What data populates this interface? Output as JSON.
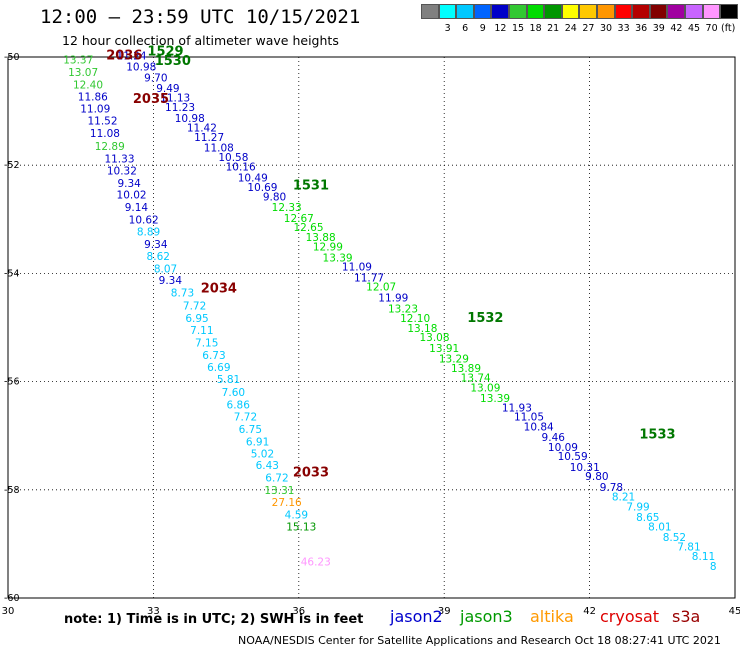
{
  "title": "12:00 – 23:59 UTC 10/15/2021",
  "subtitle": "12 hour collection of altimeter wave heights",
  "scale": {
    "unit": "(ft)",
    "boxes": [
      {
        "color": "#808080",
        "label": ""
      },
      {
        "color": "#00ffff",
        "label": "3"
      },
      {
        "color": "#00c8ff",
        "label": "6"
      },
      {
        "color": "#0064ff",
        "label": "9"
      },
      {
        "color": "#0000c8",
        "label": "12"
      },
      {
        "color": "#32c832",
        "label": "15"
      },
      {
        "color": "#00dc00",
        "label": "18"
      },
      {
        "color": "#009600",
        "label": "21"
      },
      {
        "color": "#ffff00",
        "label": "24"
      },
      {
        "color": "#ffc800",
        "label": "27"
      },
      {
        "color": "#ff9600",
        "label": "30"
      },
      {
        "color": "#ff0000",
        "label": "33"
      },
      {
        "color": "#b40000",
        "label": "36"
      },
      {
        "color": "#820000",
        "label": "39"
      },
      {
        "color": "#a000a0",
        "label": "42"
      },
      {
        "color": "#c864ff",
        "label": "45"
      },
      {
        "color": "#ff96ff",
        "label": "70"
      },
      {
        "color": "#000000",
        "label": ""
      }
    ]
  },
  "note": "note:  1) Time is in UTC;  2) SWH is in feet",
  "satellites": [
    {
      "name": "jason2",
      "color": "#0000cc"
    },
    {
      "name": "jason3",
      "color": "#009900"
    },
    {
      "name": "altika",
      "color": "#ff9900"
    },
    {
      "name": "cryosat",
      "color": "#dd0000"
    },
    {
      "name": "s3a",
      "color": "#990000"
    }
  ],
  "footer": "NOAA/NESDIS Center for Satellite Applications and Research    Oct 18 08:27:41 UTC 2021",
  "chart_data": {
    "type": "scatter",
    "xlim": [
      30,
      45
    ],
    "ylim": [
      -60,
      -50
    ],
    "xticks": [
      "30",
      "33",
      "36",
      "39",
      "42",
      "45"
    ],
    "yticks": [
      "-50",
      "-52",
      "-54",
      "-56",
      "-58",
      "-60"
    ],
    "grid": true,
    "colors": {
      "c3": "#00ffff",
      "c6": "#00c8ff",
      "c9": "#0064ff",
      "c12": "#0000c8",
      "c15": "#32c832",
      "c18": "#00dc00",
      "c21": "#009600",
      "c27": "#ffc800",
      "c30": "#ff9600",
      "c45": "#ff96ff",
      "jason3": "#007700",
      "s3a": "#880000"
    },
    "time_labels": [
      {
        "text": "2036",
        "lon": 32.4,
        "lat": -50.05,
        "color": "s3a"
      },
      {
        "text": "2035",
        "lon": 32.95,
        "lat": -50.85,
        "color": "s3a"
      },
      {
        "text": "2034",
        "lon": 34.35,
        "lat": -54.35,
        "color": "s3a"
      },
      {
        "text": "2033",
        "lon": 36.25,
        "lat": -57.75,
        "color": "s3a"
      },
      {
        "text": "1529",
        "lon": 33.25,
        "lat": -49.97,
        "color": "jason3"
      },
      {
        "text": "1530",
        "lon": 33.4,
        "lat": -50.15,
        "color": "jason3"
      },
      {
        "text": "1531",
        "lon": 36.25,
        "lat": -52.45,
        "color": "jason3"
      },
      {
        "text": "1532",
        "lon": 39.85,
        "lat": -54.9,
        "color": "jason3"
      },
      {
        "text": "1533",
        "lon": 43.4,
        "lat": -57.05,
        "color": "jason3"
      }
    ],
    "series": [
      {
        "satellite": "s3a",
        "points": [
          {
            "lon": 31.45,
            "lat": -50.12,
            "swh": 13.37,
            "c": "c15"
          },
          {
            "lon": 31.55,
            "lat": -50.35,
            "swh": 13.07,
            "c": "c15"
          },
          {
            "lon": 31.65,
            "lat": -50.58,
            "swh": 12.4,
            "c": "c15"
          },
          {
            "lon": 31.75,
            "lat": -50.8,
            "swh": 11.86,
            "c": "c12"
          },
          {
            "lon": 31.8,
            "lat": -51.03,
            "swh": 11.09,
            "c": "c12"
          },
          {
            "lon": 31.95,
            "lat": -51.25,
            "swh": 11.52,
            "c": "c12"
          },
          {
            "lon": 32.0,
            "lat": -51.48,
            "swh": 11.08,
            "c": "c12"
          },
          {
            "lon": 32.1,
            "lat": -51.72,
            "swh": 12.89,
            "c": "c15"
          },
          {
            "lon": 32.3,
            "lat": -51.95,
            "swh": 11.33,
            "c": "c12"
          },
          {
            "lon": 32.35,
            "lat": -52.17,
            "swh": 10.32,
            "c": "c12"
          },
          {
            "lon": 32.5,
            "lat": -52.4,
            "swh": 9.34,
            "c": "c12"
          },
          {
            "lon": 32.55,
            "lat": -52.62,
            "swh": 10.02,
            "c": "c12"
          },
          {
            "lon": 32.65,
            "lat": -52.85,
            "swh": 9.14,
            "c": "c12"
          },
          {
            "lon": 32.8,
            "lat": -53.08,
            "swh": 10.62,
            "c": "c12"
          },
          {
            "lon": 32.9,
            "lat": -53.3,
            "swh": 8.89,
            "c": "c6"
          },
          {
            "lon": 33.05,
            "lat": -53.53,
            "swh": 9.34,
            "c": "c12"
          },
          {
            "lon": 33.1,
            "lat": -53.75,
            "swh": 8.62,
            "c": "c6"
          },
          {
            "lon": 33.25,
            "lat": -53.98,
            "swh": 8.07,
            "c": "c6"
          },
          {
            "lon": 33.35,
            "lat": -54.2,
            "swh": 9.34,
            "c": "c12"
          },
          {
            "lon": 33.6,
            "lat": -54.43,
            "swh": 8.73,
            "c": "c6"
          },
          {
            "lon": 33.85,
            "lat": -54.67,
            "swh": 7.72,
            "c": "c6"
          },
          {
            "lon": 33.9,
            "lat": -54.9,
            "swh": 6.95,
            "c": "c6"
          },
          {
            "lon": 34.0,
            "lat": -55.12,
            "swh": 7.11,
            "c": "c6"
          },
          {
            "lon": 34.1,
            "lat": -55.35,
            "swh": 7.15,
            "c": "c6"
          },
          {
            "lon": 34.25,
            "lat": -55.58,
            "swh": 6.73,
            "c": "c6"
          },
          {
            "lon": 34.35,
            "lat": -55.8,
            "swh": 6.69,
            "c": "c6"
          },
          {
            "lon": 34.55,
            "lat": -56.03,
            "swh": 5.81,
            "c": "c6"
          },
          {
            "lon": 34.65,
            "lat": -56.27,
            "swh": 7.6,
            "c": "c6"
          },
          {
            "lon": 34.75,
            "lat": -56.5,
            "swh": 6.86,
            "c": "c6"
          },
          {
            "lon": 34.9,
            "lat": -56.72,
            "swh": 7.72,
            "c": "c6"
          },
          {
            "lon": 35.0,
            "lat": -56.95,
            "swh": 6.75,
            "c": "c6"
          },
          {
            "lon": 35.15,
            "lat": -57.18,
            "swh": 6.91,
            "c": "c6"
          },
          {
            "lon": 35.25,
            "lat": -57.4,
            "swh": 5.02,
            "c": "c6"
          },
          {
            "lon": 35.35,
            "lat": -57.62,
            "swh": 6.43,
            "c": "c6"
          },
          {
            "lon": 35.55,
            "lat": -57.85,
            "swh": 6.72,
            "c": "c6"
          },
          {
            "lon": 35.6,
            "lat": -58.08,
            "swh": 13.31,
            "c": "c15"
          },
          {
            "lon": 35.75,
            "lat": -58.3,
            "swh": 27.16,
            "c": "c30"
          },
          {
            "lon": 35.95,
            "lat": -58.53,
            "swh": 4.59,
            "c": "c6"
          },
          {
            "lon": 36.05,
            "lat": -58.75,
            "swh": 15.13,
            "c": "c21"
          },
          {
            "lon": 36.35,
            "lat": -59.4,
            "swh": 46.23,
            "c": "c45"
          }
        ]
      },
      {
        "satellite": "jason3",
        "points": [
          {
            "lon": 32.55,
            "lat": -50.05,
            "swh": 11.24,
            "c": "c12"
          },
          {
            "lon": 32.75,
            "lat": -50.25,
            "swh": 10.98,
            "c": "c12"
          },
          {
            "lon": 33.05,
            "lat": -50.45,
            "swh": 9.7,
            "c": "c12"
          },
          {
            "lon": 33.3,
            "lat": -50.65,
            "swh": 9.49,
            "c": "c12"
          },
          {
            "lon": 33.45,
            "lat": -50.82,
            "swh": 11.13,
            "c": "c12"
          },
          {
            "lon": 33.55,
            "lat": -51.0,
            "swh": 11.23,
            "c": "c12"
          },
          {
            "lon": 33.75,
            "lat": -51.2,
            "swh": 10.98,
            "c": "c12"
          },
          {
            "lon": 34.0,
            "lat": -51.38,
            "swh": 11.42,
            "c": "c12"
          },
          {
            "lon": 34.15,
            "lat": -51.55,
            "swh": 11.27,
            "c": "c12"
          },
          {
            "lon": 34.35,
            "lat": -51.75,
            "swh": 11.08,
            "c": "c12"
          },
          {
            "lon": 34.65,
            "lat": -51.92,
            "swh": 10.58,
            "c": "c12"
          },
          {
            "lon": 34.8,
            "lat": -52.1,
            "swh": 10.16,
            "c": "c12"
          },
          {
            "lon": 35.05,
            "lat": -52.3,
            "swh": 10.49,
            "c": "c12"
          },
          {
            "lon": 35.25,
            "lat": -52.48,
            "swh": 10.69,
            "c": "c12"
          },
          {
            "lon": 35.5,
            "lat": -52.65,
            "swh": 9.8,
            "c": "c12"
          },
          {
            "lon": 35.75,
            "lat": -52.85,
            "swh": 12.33,
            "c": "c18"
          },
          {
            "lon": 36.0,
            "lat": -53.05,
            "swh": 12.67,
            "c": "c18"
          },
          {
            "lon": 36.2,
            "lat": -53.22,
            "swh": 12.65,
            "c": "c18"
          },
          {
            "lon": 36.45,
            "lat": -53.4,
            "swh": 13.88,
            "c": "c18"
          },
          {
            "lon": 36.6,
            "lat": -53.58,
            "swh": 12.99,
            "c": "c18"
          },
          {
            "lon": 36.8,
            "lat": -53.78,
            "swh": 13.39,
            "c": "c18"
          },
          {
            "lon": 37.2,
            "lat": -53.95,
            "swh": 11.09,
            "c": "c12"
          },
          {
            "lon": 37.45,
            "lat": -54.15,
            "swh": 11.77,
            "c": "c12"
          },
          {
            "lon": 37.7,
            "lat": -54.32,
            "swh": 12.07,
            "c": "c18"
          },
          {
            "lon": 37.95,
            "lat": -54.52,
            "swh": 11.99,
            "c": "c12"
          },
          {
            "lon": 38.15,
            "lat": -54.72,
            "swh": 13.23,
            "c": "c18"
          },
          {
            "lon": 38.4,
            "lat": -54.9,
            "swh": 12.1,
            "c": "c18"
          },
          {
            "lon": 38.55,
            "lat": -55.08,
            "swh": 13.18,
            "c": "c18"
          },
          {
            "lon": 38.8,
            "lat": -55.25,
            "swh": 13.08,
            "c": "c18"
          },
          {
            "lon": 39.0,
            "lat": -55.45,
            "swh": 13.91,
            "c": "c18"
          },
          {
            "lon": 39.2,
            "lat": -55.65,
            "swh": 13.29,
            "c": "c18"
          },
          {
            "lon": 39.45,
            "lat": -55.82,
            "swh": 13.89,
            "c": "c18"
          },
          {
            "lon": 39.65,
            "lat": -56.0,
            "swh": 13.74,
            "c": "c18"
          },
          {
            "lon": 39.85,
            "lat": -56.18,
            "swh": 13.09,
            "c": "c18"
          },
          {
            "lon": 40.05,
            "lat": -56.38,
            "swh": 13.39,
            "c": "c18"
          },
          {
            "lon": 40.5,
            "lat": -56.55,
            "swh": 11.93,
            "c": "c12"
          },
          {
            "lon": 40.75,
            "lat": -56.72,
            "swh": 11.05,
            "c": "c12"
          },
          {
            "lon": 40.95,
            "lat": -56.9,
            "swh": 10.84,
            "c": "c12"
          },
          {
            "lon": 41.25,
            "lat": -57.1,
            "swh": 9.46,
            "c": "c12"
          },
          {
            "lon": 41.45,
            "lat": -57.28,
            "swh": 10.09,
            "c": "c12"
          },
          {
            "lon": 41.65,
            "lat": -57.45,
            "swh": 10.59,
            "c": "c12"
          },
          {
            "lon": 41.9,
            "lat": -57.65,
            "swh": 10.31,
            "c": "c12"
          },
          {
            "lon": 42.15,
            "lat": -57.82,
            "swh": 9.8,
            "c": "c12"
          },
          {
            "lon": 42.45,
            "lat": -58.02,
            "swh": 9.78,
            "c": "c12"
          },
          {
            "lon": 42.7,
            "lat": -58.2,
            "swh": 8.21,
            "c": "c6"
          },
          {
            "lon": 43.0,
            "lat": -58.38,
            "swh": 7.99,
            "c": "c6"
          },
          {
            "lon": 43.2,
            "lat": -58.58,
            "swh": 8.65,
            "c": "c6"
          },
          {
            "lon": 43.45,
            "lat": -58.75,
            "swh": 8.01,
            "c": "c6"
          },
          {
            "lon": 43.75,
            "lat": -58.95,
            "swh": 8.52,
            "c": "c6"
          },
          {
            "lon": 44.05,
            "lat": -59.12,
            "swh": 7.81,
            "c": "c6"
          },
          {
            "lon": 44.35,
            "lat": -59.3,
            "swh": 8.11,
            "c": "c6"
          },
          {
            "lon": 44.55,
            "lat": -59.48,
            "swh": 8,
            "c": "c6"
          }
        ]
      }
    ]
  }
}
